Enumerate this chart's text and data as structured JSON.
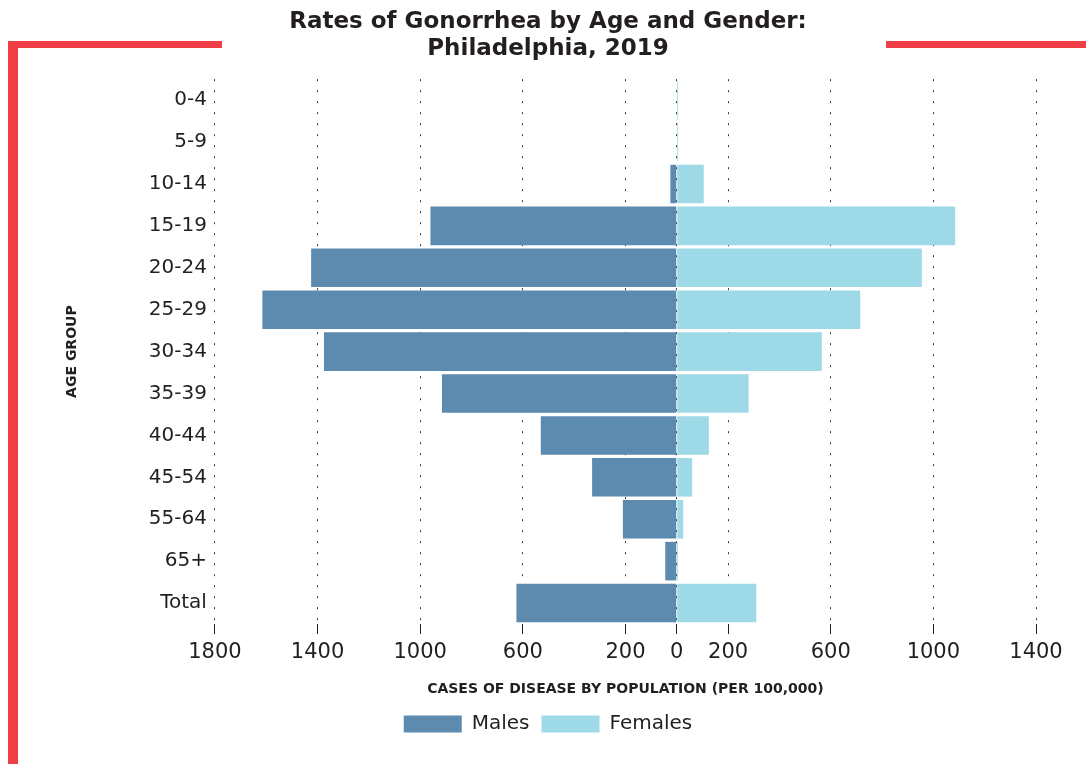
{
  "chart_data": {
    "type": "bar",
    "orientation": "horizontal",
    "stacked": true,
    "title": "Rates of Gonorrhea by Age and Gender:\nPhiladelphia, 2019",
    "xlabel": "CASES OF DISEASE BY POPULATION (PER 100,000)",
    "ylabel": "AGE GROUP",
    "categories": [
      "0-4",
      "5-9",
      "10-14",
      "15-19",
      "20-24",
      "25-29",
      "30-34",
      "35-39",
      "40-44",
      "45-54",
      "55-64",
      "65+",
      "Total"
    ],
    "series": [
      {
        "name": "Males",
        "color": "#5d8aaf",
        "values": [
          0,
          0,
          -25,
          -960,
          -1425,
          -1615,
          -1375,
          -915,
          -530,
          -330,
          -210,
          -45,
          -625
        ]
      },
      {
        "name": "Females",
        "color": "#9ed9e8",
        "values": [
          5,
          5,
          105,
          1085,
          955,
          715,
          565,
          280,
          125,
          60,
          25,
          5,
          310
        ]
      }
    ],
    "xlim": [
      -1800,
      1400
    ],
    "xticks": [
      {
        "value": -1800,
        "label": "1800"
      },
      {
        "value": -1400,
        "label": "1400"
      },
      {
        "value": -1000,
        "label": "1000"
      },
      {
        "value": -600,
        "label": "600"
      },
      {
        "value": -200,
        "label": "200"
      },
      0,
      200,
      600,
      1000,
      1400
    ],
    "grid": "x",
    "legend": "bottom"
  }
}
